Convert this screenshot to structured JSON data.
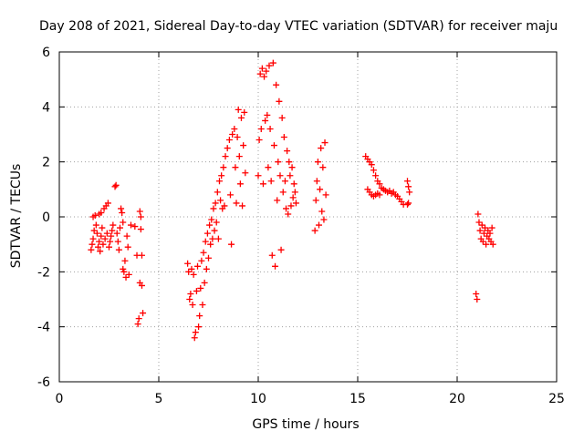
{
  "chart_data": {
    "type": "scatter",
    "title": "Day 208 of 2021, Sidereal Day-to-day VTEC variation (SDTVAR) for receiver maju",
    "xlabel": "GPS time / hours",
    "ylabel": "SDTVAR / TECUs",
    "xlim": [
      0,
      25
    ],
    "ylim": [
      -6,
      6
    ],
    "xticks": [
      0,
      5,
      10,
      15,
      20,
      25
    ],
    "yticks": [
      -6,
      -4,
      -2,
      0,
      2,
      4,
      6
    ],
    "xtick_labels": [
      "0",
      "5",
      "10",
      "15",
      "20",
      "25"
    ],
    "ytick_labels": [
      "-6",
      "-4",
      "-2",
      "0",
      "2",
      "4",
      "6"
    ],
    "grid": true,
    "grid_style": "dotted",
    "marker": "+",
    "color": "#ff0000",
    "series": [
      {
        "points": [
          [
            1.6,
            -1.2
          ],
          [
            1.65,
            -1.0
          ],
          [
            1.7,
            -0.8
          ],
          [
            1.7,
            0.0
          ],
          [
            1.75,
            -0.5
          ],
          [
            1.8,
            0.05
          ],
          [
            1.85,
            -0.3
          ],
          [
            1.9,
            -0.6
          ],
          [
            1.95,
            -1.1
          ],
          [
            2.0,
            0.1
          ],
          [
            2.0,
            -0.9
          ],
          [
            2.05,
            -1.25
          ],
          [
            2.1,
            -0.7
          ],
          [
            2.1,
            0.15
          ],
          [
            2.15,
            -0.4
          ],
          [
            2.2,
            -1.0
          ],
          [
            2.25,
            0.3
          ],
          [
            2.3,
            -0.8
          ],
          [
            2.35,
            0.4
          ],
          [
            2.4,
            -0.6
          ],
          [
            2.45,
            0.5
          ],
          [
            2.5,
            -1.1
          ],
          [
            2.55,
            -0.9
          ],
          [
            2.6,
            -0.7
          ],
          [
            2.65,
            -0.5
          ],
          [
            2.7,
            -0.3
          ],
          [
            2.8,
            1.1
          ],
          [
            2.85,
            1.15
          ],
          [
            2.9,
            -0.6
          ],
          [
            2.95,
            -0.9
          ],
          [
            3.0,
            -1.2
          ],
          [
            3.05,
            -0.4
          ],
          [
            3.1,
            0.3
          ],
          [
            3.15,
            0.15
          ],
          [
            3.2,
            -0.2
          ],
          [
            3.2,
            -1.9
          ],
          [
            3.25,
            -2.0
          ],
          [
            3.3,
            -1.6
          ],
          [
            3.35,
            -2.2
          ],
          [
            3.4,
            -0.7
          ],
          [
            3.45,
            -1.1
          ],
          [
            3.5,
            -2.1
          ],
          [
            3.6,
            -0.3
          ],
          [
            3.8,
            -0.35
          ],
          [
            3.9,
            -1.4
          ],
          [
            3.95,
            -3.9
          ],
          [
            4.0,
            -3.7
          ],
          [
            4.05,
            -2.4
          ],
          [
            4.05,
            0.2
          ],
          [
            4.1,
            -0.45
          ],
          [
            4.1,
            0.0
          ],
          [
            4.15,
            -2.5
          ],
          [
            4.15,
            -1.4
          ],
          [
            4.2,
            -3.5
          ]
        ]
      },
      {
        "points": [
          [
            6.45,
            -1.7
          ],
          [
            6.5,
            -2.0
          ],
          [
            6.55,
            -3.0
          ],
          [
            6.6,
            -2.8
          ],
          [
            6.65,
            -1.9
          ],
          [
            6.7,
            -3.2
          ],
          [
            6.75,
            -2.1
          ],
          [
            6.8,
            -4.4
          ],
          [
            6.85,
            -4.2
          ],
          [
            6.9,
            -2.7
          ],
          [
            6.95,
            -1.8
          ],
          [
            7.0,
            -4.0
          ],
          [
            7.05,
            -3.6
          ],
          [
            7.1,
            -2.6
          ],
          [
            7.15,
            -1.6
          ],
          [
            7.2,
            -3.2
          ],
          [
            7.25,
            -1.3
          ],
          [
            7.3,
            -2.4
          ],
          [
            7.35,
            -0.9
          ],
          [
            7.4,
            -1.9
          ],
          [
            7.45,
            -0.6
          ],
          [
            7.5,
            -1.5
          ],
          [
            7.55,
            -0.3
          ],
          [
            7.6,
            -1.0
          ],
          [
            7.65,
            -0.1
          ],
          [
            7.7,
            -0.8
          ],
          [
            7.75,
            0.3
          ],
          [
            7.8,
            -0.5
          ],
          [
            7.85,
            0.5
          ],
          [
            7.9,
            -0.2
          ],
          [
            7.95,
            0.9
          ],
          [
            8.0,
            -0.8
          ],
          [
            8.05,
            1.3
          ],
          [
            8.1,
            0.6
          ],
          [
            8.15,
            1.5
          ],
          [
            8.2,
            0.3
          ],
          [
            8.25,
            1.8
          ],
          [
            8.3,
            0.4
          ],
          [
            8.35,
            2.2
          ],
          [
            8.45,
            2.5
          ],
          [
            8.55,
            2.8
          ],
          [
            8.6,
            0.8
          ],
          [
            8.65,
            -1.0
          ],
          [
            8.7,
            3.0
          ],
          [
            8.8,
            3.2
          ],
          [
            8.85,
            1.8
          ],
          [
            8.9,
            0.5
          ],
          [
            8.95,
            2.9
          ],
          [
            9.0,
            3.9
          ],
          [
            9.05,
            2.2
          ],
          [
            9.1,
            1.2
          ],
          [
            9.15,
            3.6
          ],
          [
            9.2,
            0.4
          ],
          [
            9.25,
            2.6
          ],
          [
            9.3,
            3.8
          ],
          [
            9.35,
            1.6
          ]
        ]
      },
      {
        "points": [
          [
            10.0,
            1.5
          ],
          [
            10.05,
            2.8
          ],
          [
            10.1,
            5.2
          ],
          [
            10.15,
            3.2
          ],
          [
            10.2,
            5.4
          ],
          [
            10.25,
            1.2
          ],
          [
            10.3,
            5.1
          ],
          [
            10.35,
            3.5
          ],
          [
            10.4,
            5.3
          ],
          [
            10.45,
            3.7
          ],
          [
            10.5,
            1.8
          ],
          [
            10.55,
            5.5
          ],
          [
            10.6,
            3.2
          ],
          [
            10.65,
            1.3
          ],
          [
            10.7,
            -1.4
          ],
          [
            10.75,
            5.6
          ],
          [
            10.8,
            2.6
          ],
          [
            10.85,
            -1.8
          ],
          [
            10.9,
            4.8
          ],
          [
            10.95,
            0.6
          ],
          [
            11.0,
            2.0
          ],
          [
            11.05,
            4.2
          ],
          [
            11.1,
            1.5
          ],
          [
            11.15,
            -1.2
          ],
          [
            11.2,
            3.6
          ],
          [
            11.25,
            0.9
          ],
          [
            11.3,
            2.9
          ],
          [
            11.35,
            1.3
          ],
          [
            11.4,
            0.3
          ],
          [
            11.45,
            2.4
          ],
          [
            11.5,
            0.1
          ],
          [
            11.55,
            2.0
          ],
          [
            11.6,
            1.5
          ],
          [
            11.65,
            0.4
          ],
          [
            11.7,
            1.8
          ],
          [
            11.75,
            0.7
          ],
          [
            11.8,
            1.2
          ],
          [
            11.85,
            0.9
          ],
          [
            11.9,
            0.5
          ]
        ]
      },
      {
        "points": [
          [
            12.85,
            -0.5
          ],
          [
            12.9,
            0.6
          ],
          [
            12.95,
            1.3
          ],
          [
            13.0,
            2.0
          ],
          [
            13.05,
            -0.3
          ],
          [
            13.1,
            1.0
          ],
          [
            13.15,
            2.5
          ],
          [
            13.2,
            0.2
          ],
          [
            13.25,
            1.8
          ],
          [
            13.3,
            -0.1
          ],
          [
            13.35,
            2.7
          ],
          [
            13.4,
            0.8
          ]
        ]
      },
      {
        "points": [
          [
            15.4,
            2.2
          ],
          [
            15.5,
            2.1
          ],
          [
            15.6,
            2.0
          ],
          [
            15.7,
            1.9
          ],
          [
            15.8,
            1.7
          ],
          [
            15.9,
            1.5
          ],
          [
            16.0,
            1.3
          ],
          [
            16.1,
            1.2
          ],
          [
            16.2,
            1.05
          ],
          [
            16.3,
            1.0
          ],
          [
            16.4,
            0.95
          ],
          [
            16.5,
            0.9
          ],
          [
            16.6,
            0.95
          ],
          [
            16.7,
            0.85
          ],
          [
            16.8,
            0.9
          ],
          [
            16.9,
            0.8
          ],
          [
            17.0,
            0.75
          ],
          [
            17.1,
            0.65
          ],
          [
            17.2,
            0.55
          ],
          [
            17.3,
            0.45
          ],
          [
            15.5,
            1.0
          ],
          [
            15.6,
            0.9
          ],
          [
            15.7,
            0.8
          ],
          [
            15.8,
            0.75
          ],
          [
            15.9,
            0.8
          ],
          [
            16.0,
            0.85
          ],
          [
            16.1,
            0.8
          ],
          [
            17.5,
            1.3
          ],
          [
            17.55,
            1.1
          ],
          [
            17.6,
            0.9
          ],
          [
            17.55,
            0.5
          ],
          [
            17.5,
            0.45
          ]
        ]
      },
      {
        "points": [
          [
            20.95,
            -2.8
          ],
          [
            21.0,
            -3.0
          ],
          [
            21.05,
            0.1
          ],
          [
            21.1,
            -0.2
          ],
          [
            21.15,
            -0.5
          ],
          [
            21.2,
            -0.8
          ],
          [
            21.25,
            -0.3
          ],
          [
            21.3,
            -0.9
          ],
          [
            21.35,
            -0.6
          ],
          [
            21.4,
            -0.4
          ],
          [
            21.45,
            -1.0
          ],
          [
            21.5,
            -0.7
          ],
          [
            21.55,
            -0.5
          ],
          [
            21.6,
            -0.8
          ],
          [
            21.65,
            -0.6
          ],
          [
            21.7,
            -0.9
          ],
          [
            21.75,
            -0.4
          ],
          [
            21.8,
            -1.0
          ]
        ]
      }
    ]
  }
}
